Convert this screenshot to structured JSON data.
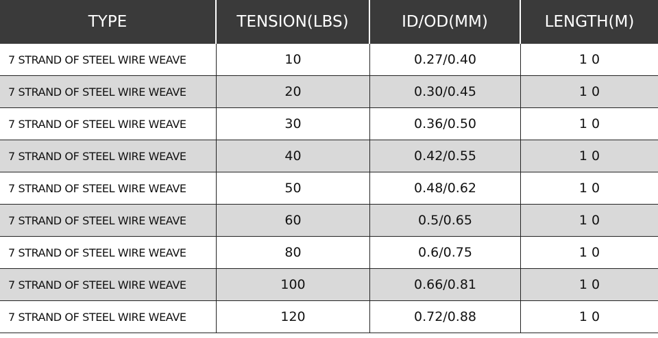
{
  "table": {
    "columns": [
      "TYPE",
      "TENSION(LBS)",
      "ID/OD(MM)",
      "LENGTH(M)"
    ],
    "rows": [
      [
        "7 STRAND OF STEEL WIRE WEAVE",
        "10",
        "0.27/0.40",
        "1 0"
      ],
      [
        "7 STRAND OF STEEL WIRE WEAVE",
        "20",
        "0.30/0.45",
        "1 0"
      ],
      [
        "7 STRAND OF STEEL WIRE WEAVE",
        "30",
        "0.36/0.50",
        "1 0"
      ],
      [
        "7 STRAND OF STEEL WIRE WEAVE",
        "40",
        "0.42/0.55",
        "1 0"
      ],
      [
        "7 STRAND OF STEEL WIRE WEAVE",
        "50",
        "0.48/0.62",
        "1 0"
      ],
      [
        "7 STRAND OF STEEL WIRE WEAVE",
        "60",
        "0.5/0.65",
        "1 0"
      ],
      [
        "7 STRAND OF STEEL WIRE WEAVE",
        "80",
        "0.6/0.75",
        "1 0"
      ],
      [
        "7 STRAND OF STEEL WIRE WEAVE",
        "100",
        "0.66/0.81",
        "1 0"
      ],
      [
        "7 STRAND OF STEEL WIRE WEAVE",
        "120",
        "0.72/0.88",
        "1 0"
      ]
    ]
  }
}
